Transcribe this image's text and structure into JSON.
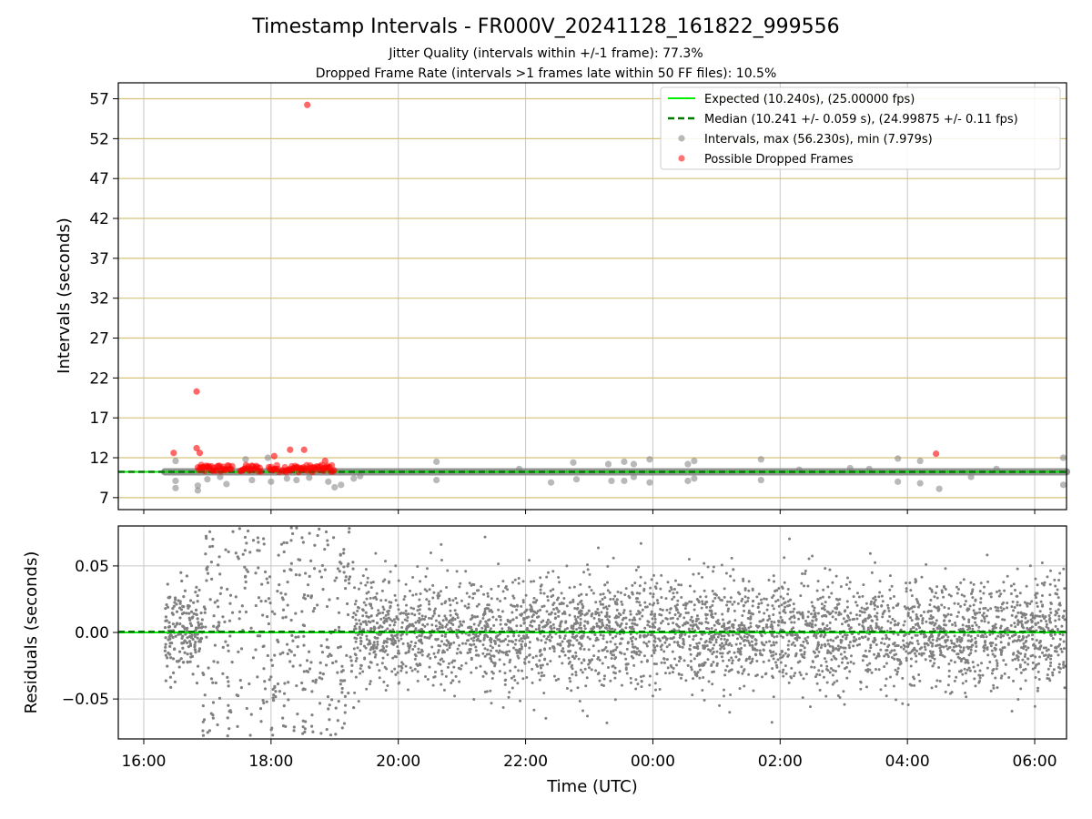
{
  "figure": {
    "title": "Timestamp Intervals - FR000V_20241128_161822_999556",
    "subtitle_1": "Jitter Quality (intervals within +/-1 frame): 77.3%",
    "subtitle_2": "Dropped Frame Rate (intervals >1 frames late within 50 FF files): 10.5%"
  },
  "colors": {
    "expected": "#00ee00",
    "median": "#007700",
    "intervals": "#808080",
    "dropped": "#ff0000",
    "hgrid_top": "#d6c27a",
    "grid": "#c8c8c8"
  },
  "chart_data": [
    {
      "type": "scatter",
      "ylabel": "Intervals (seconds)",
      "xlim_hours": [
        15.6,
        30.5
      ],
      "ylim": [
        5.5,
        59
      ],
      "yticks": [
        7,
        12,
        17,
        22,
        27,
        32,
        37,
        42,
        47,
        52,
        57
      ],
      "grid": true,
      "legend_placement": "top-right",
      "expected_interval": 10.24,
      "median_interval": 10.241,
      "legend": [
        "Expected (10.240s), (25.00000 fps)",
        "Median (10.241 +/- 0.059 s), (24.99875 +/- 0.11 fps)",
        "Intervals, max (56.230s), min (7.979s)",
        "Possible Dropped Frames"
      ],
      "interval_band": {
        "x_start_hours": 16.33,
        "x_end_hours": 30.5,
        "y": 10.24
      },
      "interval_outliers": [
        {
          "x": 16.5,
          "y": 8.2
        },
        {
          "x": 16.5,
          "y": 11.6
        },
        {
          "x": 16.5,
          "y": 9.1
        },
        {
          "x": 16.85,
          "y": 7.9
        },
        {
          "x": 16.85,
          "y": 8.5
        },
        {
          "x": 17.0,
          "y": 9.3
        },
        {
          "x": 17.2,
          "y": 9.6
        },
        {
          "x": 17.3,
          "y": 8.7
        },
        {
          "x": 17.6,
          "y": 11.8
        },
        {
          "x": 17.7,
          "y": 9.2
        },
        {
          "x": 17.95,
          "y": 12.0
        },
        {
          "x": 18.0,
          "y": 9.0
        },
        {
          "x": 18.25,
          "y": 9.4
        },
        {
          "x": 18.4,
          "y": 9.2
        },
        {
          "x": 18.6,
          "y": 9.5
        },
        {
          "x": 18.9,
          "y": 9.0
        },
        {
          "x": 19.0,
          "y": 8.3
        },
        {
          "x": 19.1,
          "y": 8.6
        },
        {
          "x": 19.3,
          "y": 9.4
        },
        {
          "x": 19.4,
          "y": 9.7
        },
        {
          "x": 20.6,
          "y": 11.5
        },
        {
          "x": 20.6,
          "y": 9.2
        },
        {
          "x": 21.9,
          "y": 10.6
        },
        {
          "x": 22.4,
          "y": 8.9
        },
        {
          "x": 22.75,
          "y": 11.4
        },
        {
          "x": 22.8,
          "y": 9.3
        },
        {
          "x": 23.3,
          "y": 11.2
        },
        {
          "x": 23.35,
          "y": 9.1
        },
        {
          "x": 23.55,
          "y": 11.5
        },
        {
          "x": 23.55,
          "y": 9.1
        },
        {
          "x": 23.7,
          "y": 9.6
        },
        {
          "x": 23.7,
          "y": 11.2
        },
        {
          "x": 23.95,
          "y": 11.8
        },
        {
          "x": 23.95,
          "y": 8.9
        },
        {
          "x": 24.55,
          "y": 11.2
        },
        {
          "x": 24.55,
          "y": 9.1
        },
        {
          "x": 24.65,
          "y": 11.6
        },
        {
          "x": 24.65,
          "y": 9.4
        },
        {
          "x": 25.7,
          "y": 11.8
        },
        {
          "x": 25.7,
          "y": 9.2
        },
        {
          "x": 26.3,
          "y": 10.5
        },
        {
          "x": 27.1,
          "y": 10.7
        },
        {
          "x": 27.4,
          "y": 10.6
        },
        {
          "x": 27.85,
          "y": 11.9
        },
        {
          "x": 27.85,
          "y": 9.0
        },
        {
          "x": 28.2,
          "y": 11.6
        },
        {
          "x": 28.2,
          "y": 8.8
        },
        {
          "x": 28.5,
          "y": 8.1
        },
        {
          "x": 29.0,
          "y": 9.6
        },
        {
          "x": 29.4,
          "y": 10.6
        },
        {
          "x": 30.45,
          "y": 12.0
        },
        {
          "x": 30.45,
          "y": 8.6
        }
      ],
      "dropped_frames": [
        {
          "x": 16.47,
          "y": 12.6
        },
        {
          "x": 16.83,
          "y": 20.3
        },
        {
          "x": 16.83,
          "y": 13.2
        },
        {
          "x": 16.88,
          "y": 12.6
        },
        {
          "x": 18.05,
          "y": 12.2
        },
        {
          "x": 18.3,
          "y": 13.0
        },
        {
          "x": 18.52,
          "y": 13.0
        },
        {
          "x": 18.57,
          "y": 56.23
        },
        {
          "x": 18.85,
          "y": 11.6
        },
        {
          "x": 28.45,
          "y": 12.5
        }
      ],
      "dropped_cluster": {
        "x_start_hours": 16.85,
        "x_end_hours": 19.0,
        "y_min": 10.2,
        "y_max": 11.1
      }
    },
    {
      "type": "scatter",
      "ylabel": "Residuals (seconds)",
      "xlabel": "Time (UTC)",
      "xlim_hours": [
        15.6,
        30.5
      ],
      "ylim": [
        -0.08,
        0.08
      ],
      "yticks": [
        0.05,
        0.0,
        -0.05
      ],
      "ytick_labels": [
        "0.05",
        "0.00",
        "−0.05"
      ],
      "xticks_hours": [
        16,
        18,
        20,
        22,
        24,
        26,
        28,
        30
      ],
      "xtick_labels": [
        "16:00",
        "18:00",
        "20:00",
        "22:00",
        "00:00",
        "02:00",
        "04:00",
        "06:00"
      ],
      "grid": true,
      "residual_spread": {
        "early_sparse_until_hours": 19.3,
        "dense_sd": 0.02,
        "early_sd": 0.035
      }
    }
  ]
}
